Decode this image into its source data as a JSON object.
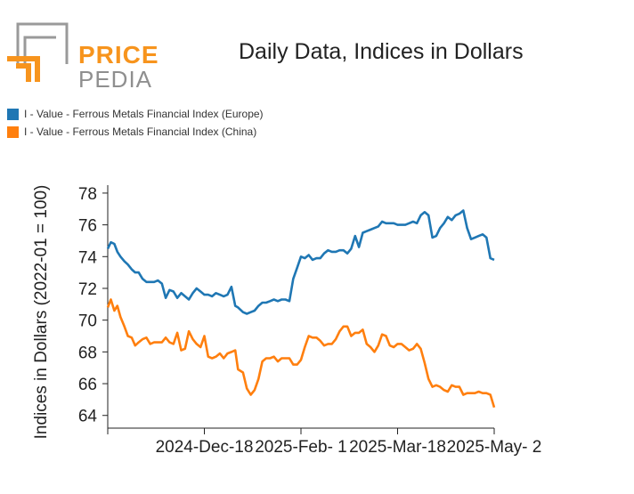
{
  "brand": {
    "word1": "PRICE",
    "word2": "PEDIA"
  },
  "colors": {
    "europe": "#1f77b4",
    "china": "#ff7f0e",
    "logo_orange": "#f7941d",
    "logo_gray": "#9a9a9a"
  },
  "chart_data": {
    "type": "line",
    "title": "Daily Data, Indices in Dollars",
    "ylabel": "Indices in Dollars (2022-01 = 100)",
    "xlabel": "",
    "ylim": [
      63.2,
      78.5
    ],
    "yticks": [
      64,
      66,
      68,
      70,
      72,
      74,
      76,
      78
    ],
    "x_range": [
      0,
      100
    ],
    "xticks": [
      {
        "x": 25,
        "label": "2024-Dec-18"
      },
      {
        "x": 50,
        "label": "2025-Feb- 1"
      },
      {
        "x": 75,
        "label": "2025-Mar-18"
      },
      {
        "x": 100,
        "label": "2025-May- 2"
      }
    ],
    "series": [
      {
        "name": "I - Value - Ferrous Metals Financial Index (Europe)",
        "color": "#1f77b4",
        "x": [
          0,
          0.8,
          1.7,
          2.5,
          3.3,
          4.3,
          5.2,
          6.2,
          7.1,
          8.0,
          9.0,
          10.0,
          11.0,
          12.0,
          13.0,
          14.0,
          15.0,
          16.0,
          17.0,
          18.0,
          19.0,
          20.0,
          21.0,
          22.0,
          23.0,
          24.0,
          25.0,
          26.0,
          27.0,
          28.0,
          29.0,
          30.0,
          31.0,
          32.0,
          33.0,
          33.7,
          35.0,
          36.0,
          37.0,
          38.0,
          39.0,
          40.0,
          41.0,
          42.0,
          43.0,
          44.0,
          45.0,
          46.0,
          47.0,
          48.0,
          49.0,
          50.0,
          51.0,
          52.0,
          53.0,
          54.0,
          55.0,
          56.0,
          57.0,
          58.0,
          59.0,
          60.0,
          61.0,
          62.0,
          63.0,
          64.0,
          65.0,
          66.0,
          67.0,
          68.0,
          69.0,
          70.0,
          71.0,
          72.0,
          73.0,
          74.0,
          75.0,
          76.0,
          77.0,
          78.0,
          79.0,
          80.0,
          81.0,
          82.0,
          83.0,
          84.0,
          85.0,
          86.0,
          87.0,
          88.0,
          89.0,
          90.0,
          91.0,
          92.0,
          93.0,
          94.0,
          95.0,
          96.0,
          97.0,
          98.0,
          99.0,
          100.0
        ],
        "values": [
          74.5,
          74.9,
          74.8,
          74.3,
          74.0,
          73.7,
          73.5,
          73.2,
          73.0,
          73.0,
          72.6,
          72.4,
          72.4,
          72.4,
          72.5,
          72.3,
          71.4,
          71.9,
          71.8,
          71.4,
          71.7,
          71.5,
          71.3,
          71.7,
          72.0,
          71.8,
          71.6,
          71.6,
          71.5,
          71.7,
          71.6,
          71.5,
          71.6,
          72.1,
          70.9,
          70.8,
          70.5,
          70.4,
          70.5,
          70.6,
          70.9,
          71.1,
          71.1,
          71.2,
          71.3,
          71.2,
          71.3,
          71.3,
          71.2,
          72.6,
          73.3,
          74.0,
          73.9,
          74.1,
          73.8,
          73.9,
          73.9,
          74.2,
          74.4,
          74.3,
          74.3,
          74.4,
          74.4,
          74.2,
          74.5,
          75.3,
          74.6,
          75.5,
          75.6,
          75.7,
          75.8,
          75.9,
          76.2,
          76.1,
          76.1,
          76.1,
          76.0,
          76.0,
          76.0,
          76.1,
          76.2,
          76.1,
          76.6,
          76.8,
          76.6,
          75.2,
          75.3,
          75.8,
          76.1,
          76.5,
          76.3,
          76.6,
          76.7,
          76.9,
          75.8,
          75.1,
          75.2,
          75.3,
          75.4,
          75.2,
          73.9,
          73.8
        ]
      },
      {
        "name": "I - Value - Ferrous Metals Financial Index (China)",
        "color": "#ff7f0e",
        "x": [
          0,
          0.8,
          1.7,
          2.5,
          3.3,
          4.3,
          5.2,
          6.2,
          7.1,
          8.0,
          9.0,
          10.0,
          11.0,
          12.0,
          13.0,
          14.0,
          15.0,
          16.0,
          17.0,
          18.0,
          19.0,
          20.0,
          21.0,
          22.0,
          23.0,
          24.0,
          25.0,
          26.0,
          27.0,
          28.0,
          29.0,
          30.0,
          31.0,
          32.0,
          33.0,
          33.7,
          35.0,
          36.0,
          37.0,
          38.0,
          39.0,
          40.0,
          41.0,
          42.0,
          43.0,
          44.0,
          45.0,
          46.0,
          47.0,
          48.0,
          49.0,
          50.0,
          51.0,
          52.0,
          53.0,
          54.0,
          55.0,
          56.0,
          57.0,
          58.0,
          59.0,
          60.0,
          61.0,
          62.0,
          63.0,
          64.0,
          65.0,
          66.0,
          67.0,
          68.0,
          69.0,
          70.0,
          71.0,
          72.0,
          73.0,
          74.0,
          75.0,
          76.0,
          77.0,
          78.0,
          79.0,
          80.0,
          81.0,
          82.0,
          83.0,
          84.0,
          85.0,
          86.0,
          87.0,
          88.0,
          89.0,
          90.0,
          91.0,
          92.0,
          93.0,
          94.0,
          95.0,
          96.0,
          97.0,
          98.0,
          99.0,
          100.0
        ],
        "values": [
          70.8,
          71.3,
          70.6,
          70.9,
          70.2,
          69.6,
          69.0,
          68.9,
          68.4,
          68.6,
          68.8,
          68.9,
          68.5,
          68.6,
          68.6,
          68.6,
          68.9,
          68.6,
          68.5,
          69.2,
          68.1,
          68.2,
          69.3,
          68.8,
          68.5,
          68.3,
          69.0,
          67.7,
          67.6,
          67.7,
          67.9,
          67.6,
          67.9,
          68.0,
          68.1,
          66.9,
          66.7,
          65.7,
          65.3,
          65.6,
          66.3,
          67.4,
          67.6,
          67.6,
          67.7,
          67.4,
          67.6,
          67.6,
          67.6,
          67.2,
          67.2,
          67.5,
          68.3,
          69.0,
          68.9,
          68.9,
          68.7,
          68.4,
          68.5,
          68.5,
          68.8,
          69.3,
          69.6,
          69.6,
          69.0,
          69.2,
          69.2,
          69.4,
          68.5,
          68.3,
          68.0,
          68.4,
          69.1,
          69.0,
          68.4,
          68.3,
          68.5,
          68.5,
          68.3,
          68.1,
          68.2,
          68.5,
          68.2,
          67.3,
          66.3,
          65.8,
          65.9,
          65.8,
          65.6,
          65.5,
          65.9,
          65.8,
          65.8,
          65.3,
          65.4,
          65.4,
          65.4,
          65.5,
          65.4,
          65.4,
          65.3,
          64.5
        ]
      }
    ]
  }
}
